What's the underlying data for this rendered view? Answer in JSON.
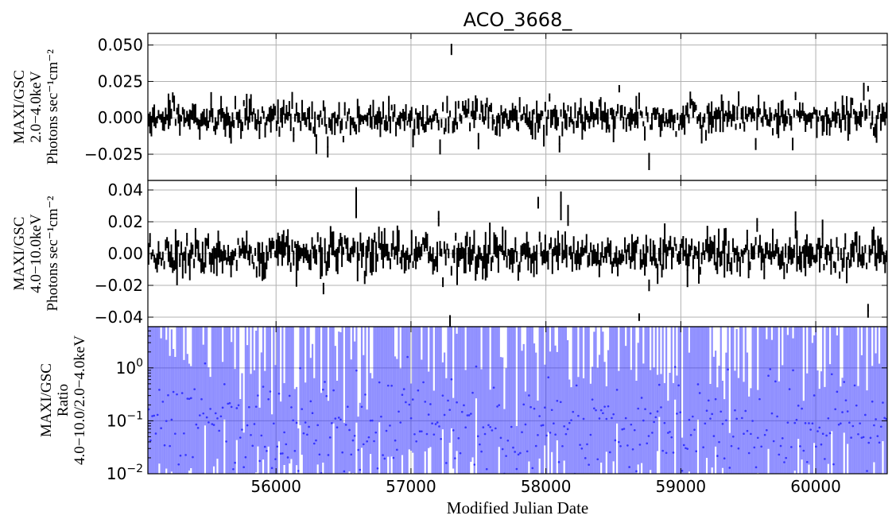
{
  "title": "ACO_3668_",
  "xlabel": "Modified Julian Date",
  "chart_data": [
    {
      "type": "line",
      "panel": "top",
      "title": "ACO_3668_",
      "ylabel_lines": [
        "MAXI/GSC",
        "2.0−4.0keV",
        "Photons sec⁻¹cm⁻²"
      ],
      "xlim": [
        55050,
        60530
      ],
      "ylim": [
        -0.043,
        0.058
      ],
      "y_ticks": [
        -0.025,
        0.0,
        0.025,
        0.05
      ],
      "y_tick_labels": [
        "−0.025",
        "0.000",
        "0.025",
        "0.050"
      ],
      "grid": true,
      "noise_sigma": 0.0045,
      "error_sigma": 0.0035,
      "spikes": [
        {
          "x": 55225,
          "y": 0.014
        },
        {
          "x": 55660,
          "y": -0.01
        },
        {
          "x": 56290,
          "y": -0.018
        },
        {
          "x": 56380,
          "y": -0.02
        },
        {
          "x": 57010,
          "y": -0.014
        },
        {
          "x": 57210,
          "y": -0.02
        },
        {
          "x": 57290,
          "y": 0.047
        },
        {
          "x": 57500,
          "y": -0.016
        },
        {
          "x": 58020,
          "y": 0.014
        },
        {
          "x": 58100,
          "y": -0.018
        },
        {
          "x": 58540,
          "y": 0.02
        },
        {
          "x": 58760,
          "y": -0.03
        },
        {
          "x": 59180,
          "y": -0.012
        },
        {
          "x": 59550,
          "y": -0.018
        },
        {
          "x": 59820,
          "y": -0.018
        },
        {
          "x": 59850,
          "y": 0.015
        },
        {
          "x": 60350,
          "y": 0.018
        },
        {
          "x": 60380,
          "y": 0.02
        }
      ]
    },
    {
      "type": "line",
      "panel": "middle",
      "ylabel_lines": [
        "MAXI/GSC",
        "4.0−10.0keV",
        "Photons sec⁻¹cm⁻²"
      ],
      "xlim": [
        55050,
        60530
      ],
      "ylim": [
        -0.046,
        0.046
      ],
      "y_ticks": [
        -0.04,
        -0.02,
        0.0,
        0.02,
        0.04
      ],
      "y_tick_labels": [
        "−0.04",
        "−0.02",
        "0.00",
        "0.02",
        "0.04"
      ],
      "grid": true,
      "noise_sigma": 0.005,
      "error_sigma": 0.004,
      "spikes": [
        {
          "x": 56350,
          "y": -0.022
        },
        {
          "x": 56590,
          "y": 0.032
        },
        {
          "x": 56650,
          "y": -0.015
        },
        {
          "x": 57200,
          "y": 0.022
        },
        {
          "x": 57230,
          "y": -0.018
        },
        {
          "x": 57280,
          "y": -0.043
        },
        {
          "x": 57940,
          "y": 0.032
        },
        {
          "x": 58110,
          "y": 0.03
        },
        {
          "x": 58160,
          "y": 0.024
        },
        {
          "x": 58690,
          "y": -0.04
        },
        {
          "x": 58760,
          "y": -0.02
        },
        {
          "x": 59560,
          "y": 0.018
        },
        {
          "x": 59840,
          "y": 0.018
        },
        {
          "x": 60380,
          "y": -0.036
        }
      ]
    },
    {
      "type": "scatter",
      "panel": "bottom",
      "ylabel_lines": [
        "MAXI/GSC",
        "Ratio",
        "4.0−10.0/2.0−4.0keV"
      ],
      "xlim": [
        55050,
        60530
      ],
      "yscale": "log",
      "ylim": [
        0.01,
        6.0
      ],
      "y_ticks": [
        0.01,
        0.1,
        1.0
      ],
      "y_tick_labels_base": "10",
      "y_tick_labels_exp": [
        "−2",
        "−1",
        "0"
      ],
      "grid": true,
      "series_color": "#3333ff",
      "x_ticks": [
        56000,
        57000,
        58000,
        59000,
        60000
      ],
      "x_tick_labels": [
        "56000",
        "57000",
        "58000",
        "59000",
        "60000"
      ]
    }
  ]
}
